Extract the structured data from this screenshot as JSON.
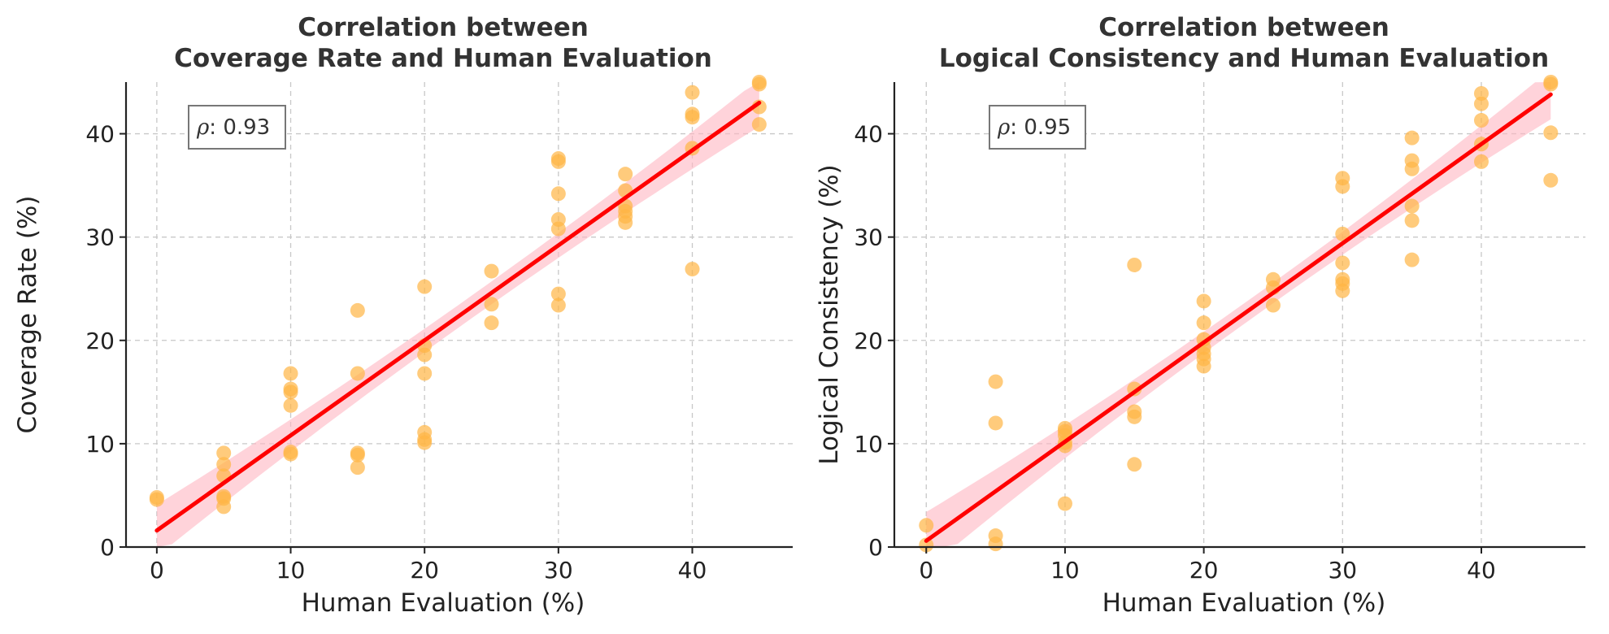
{
  "chart_data": [
    {
      "type": "scatter",
      "title_line1": "Correlation between",
      "title_line2": "Coverage Rate and Human Evaluation",
      "xlabel": "Human Evaluation (%)",
      "ylabel": "Coverage Rate (%)",
      "xlim": [
        -2.3,
        47.5
      ],
      "ylim": [
        0,
        45
      ],
      "xticks": [
        0,
        10,
        20,
        30,
        40
      ],
      "yticks": [
        0,
        10,
        20,
        30,
        40
      ],
      "grid": true,
      "annotation": {
        "symbol": "ρ",
        "text": ": 0.93"
      },
      "point_color": "#ffb545",
      "line_color": "#ff0000",
      "band_color": "#ffb6c1",
      "regression": {
        "x0": 0,
        "y0": 1.6,
        "x1": 45,
        "y1": 43.0
      },
      "band_halfwidth": {
        "start": 2.5,
        "mid": 1.1,
        "end": 2.3
      },
      "points": [
        [
          0,
          4.8
        ],
        [
          0,
          4.6
        ],
        [
          5,
          9.1
        ],
        [
          5,
          8.0
        ],
        [
          5,
          6.9
        ],
        [
          5,
          4.9
        ],
        [
          5,
          4.7
        ],
        [
          5,
          3.9
        ],
        [
          10,
          16.8
        ],
        [
          10,
          15.3
        ],
        [
          10,
          15.0
        ],
        [
          10,
          13.7
        ],
        [
          10,
          9.2
        ],
        [
          10,
          9.0
        ],
        [
          15,
          22.9
        ],
        [
          15,
          16.8
        ],
        [
          15,
          9.1
        ],
        [
          15,
          8.9
        ],
        [
          15,
          7.7
        ],
        [
          20,
          25.2
        ],
        [
          20,
          19.5
        ],
        [
          20,
          18.6
        ],
        [
          20,
          16.8
        ],
        [
          20,
          11.1
        ],
        [
          20,
          10.4
        ],
        [
          20,
          10.1
        ],
        [
          25,
          26.7
        ],
        [
          25,
          23.5
        ],
        [
          25,
          21.7
        ],
        [
          30,
          37.6
        ],
        [
          30,
          37.3
        ],
        [
          30,
          34.2
        ],
        [
          30,
          31.7
        ],
        [
          30,
          30.8
        ],
        [
          30,
          24.5
        ],
        [
          30,
          23.4
        ],
        [
          35,
          36.1
        ],
        [
          35,
          34.5
        ],
        [
          35,
          33.0
        ],
        [
          35,
          32.5
        ],
        [
          35,
          32.0
        ],
        [
          35,
          31.4
        ],
        [
          40,
          44.0
        ],
        [
          40,
          41.9
        ],
        [
          40,
          41.6
        ],
        [
          40,
          38.6
        ],
        [
          40,
          26.9
        ],
        [
          45,
          45.0
        ],
        [
          45,
          44.8
        ],
        [
          45,
          42.6
        ],
        [
          45,
          40.9
        ]
      ]
    },
    {
      "type": "scatter",
      "title_line1": "Correlation between",
      "title_line2": "Logical Consistency and Human Evaluation",
      "xlabel": "Human Evaluation (%)",
      "ylabel": "Logical Consistency (%)",
      "xlim": [
        -2.3,
        47.5
      ],
      "ylim": [
        0,
        45
      ],
      "xticks": [
        0,
        10,
        20,
        30,
        40
      ],
      "yticks": [
        0,
        10,
        20,
        30,
        40
      ],
      "grid": true,
      "annotation": {
        "symbol": "ρ",
        "text": ": 0.95"
      },
      "point_color": "#ffb545",
      "line_color": "#ff0000",
      "band_color": "#ffb6c1",
      "regression": {
        "x0": 0,
        "y0": 0.6,
        "x1": 45,
        "y1": 43.8
      },
      "band_halfwidth": {
        "start": 2.8,
        "mid": 1.0,
        "end": 2.4
      },
      "points": [
        [
          0,
          2.1
        ],
        [
          0,
          0.2
        ],
        [
          5,
          16.0
        ],
        [
          5,
          12.0
        ],
        [
          5,
          1.1
        ],
        [
          5,
          0.3
        ],
        [
          10,
          11.5
        ],
        [
          10,
          11.2
        ],
        [
          10,
          10.8
        ],
        [
          10,
          10.1
        ],
        [
          10,
          9.8
        ],
        [
          10,
          4.2
        ],
        [
          15,
          27.3
        ],
        [
          15,
          15.3
        ],
        [
          15,
          13.1
        ],
        [
          15,
          12.6
        ],
        [
          15,
          8.0
        ],
        [
          20,
          23.8
        ],
        [
          20,
          21.7
        ],
        [
          20,
          20.1
        ],
        [
          20,
          19.3
        ],
        [
          20,
          18.7
        ],
        [
          20,
          18.2
        ],
        [
          20,
          17.5
        ],
        [
          25,
          25.9
        ],
        [
          25,
          25.1
        ],
        [
          25,
          23.4
        ],
        [
          30,
          35.7
        ],
        [
          30,
          34.9
        ],
        [
          30,
          30.3
        ],
        [
          30,
          27.5
        ],
        [
          30,
          25.9
        ],
        [
          30,
          25.5
        ],
        [
          30,
          24.8
        ],
        [
          35,
          39.6
        ],
        [
          35,
          37.4
        ],
        [
          35,
          36.6
        ],
        [
          35,
          33.0
        ],
        [
          35,
          31.6
        ],
        [
          35,
          27.8
        ],
        [
          40,
          43.9
        ],
        [
          40,
          42.9
        ],
        [
          40,
          41.3
        ],
        [
          40,
          39.0
        ],
        [
          40,
          37.3
        ],
        [
          45,
          45.0
        ],
        [
          45,
          44.8
        ],
        [
          45,
          40.1
        ],
        [
          45,
          35.5
        ]
      ]
    }
  ]
}
